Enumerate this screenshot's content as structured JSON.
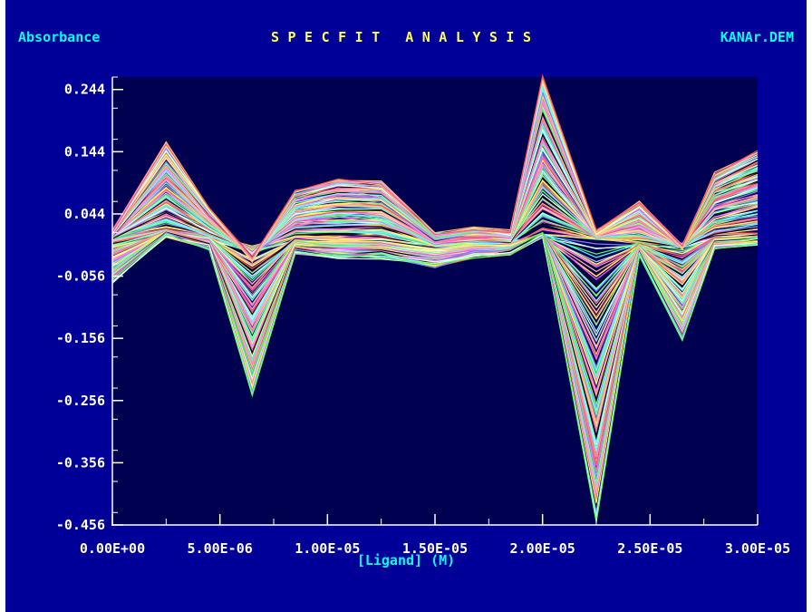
{
  "header": {
    "ylabel": "Absorbance",
    "title": "SPECFIT ANALYSIS",
    "filename": "KANAr.DEM"
  },
  "colors": {
    "background": "#000098",
    "plot_area": "#000050",
    "axis": "#ffffff",
    "title": "#ffff55",
    "labels": "#00ffff",
    "palette": [
      "#ff7f7f",
      "#7fff7f",
      "#ffff7f",
      "#7f7fff",
      "#ff7fff",
      "#7fffff",
      "#ffbf7f",
      "#ffffff",
      "#ff5555",
      "#55ff55",
      "#ffff55",
      "#55ffff",
      "#ff55ff",
      "#bfbfff",
      "#000000"
    ]
  },
  "chart_data": {
    "type": "line",
    "title": "SPECFIT ANALYSIS",
    "xlabel": "[Ligand] (M)",
    "ylabel": "Absorbance",
    "xlim": [
      0,
      3e-05
    ],
    "ylim": [
      -0.456,
      0.264
    ],
    "grid": false,
    "legend": "none",
    "x_tick_labels": [
      "0.00E+00",
      "5.00E-06",
      "1.00E-05",
      "1.50E-05",
      "2.00E-05",
      "2.50E-05",
      "3.00E-05"
    ],
    "x_ticks": [
      0,
      5e-06,
      1e-05,
      1.5e-05,
      2e-05,
      2.5e-05,
      3e-05
    ],
    "x_minor_step": 2.5e-06,
    "y_tick_labels": [
      "0.244",
      "0.144",
      "0.044",
      "-0.056",
      "-0.156",
      "-0.256",
      "-0.356",
      "-0.456"
    ],
    "y_ticks": [
      0.244,
      0.144,
      0.044,
      -0.056,
      -0.156,
      -0.256,
      -0.356,
      -0.456
    ],
    "y_minor_step": 0.05,
    "x": [
      0,
      2.5e-06,
      4.5e-06,
      6.5e-06,
      8.5e-06,
      1.05e-05,
      1.25e-05,
      1.5e-05,
      1.68e-05,
      1.85e-05,
      2e-05,
      2.25e-05,
      2.45e-05,
      2.65e-05,
      2.8e-05,
      3e-05
    ],
    "series_count": 220,
    "envelope_upper": [
      0.015,
      0.16,
      0.055,
      -0.03,
      0.08,
      0.1,
      0.095,
      0.01,
      0.02,
      0.015,
      0.265,
      0.015,
      0.062,
      -0.01,
      0.11,
      0.145
    ],
    "envelope_lower": [
      -0.065,
      0.01,
      -0.01,
      -0.25,
      -0.018,
      -0.025,
      -0.025,
      -0.04,
      -0.025,
      -0.02,
      0.01,
      -0.45,
      -0.02,
      -0.16,
      -0.01,
      -0.005
    ],
    "baseline": [
      0.005,
      0.015,
      0.005,
      -0.01,
      0.005,
      0.003,
      0.003,
      -0.008,
      -0.004,
      -0.004,
      0.01,
      0.006,
      -0.005,
      -0.006,
      0.005,
      0.01
    ]
  }
}
